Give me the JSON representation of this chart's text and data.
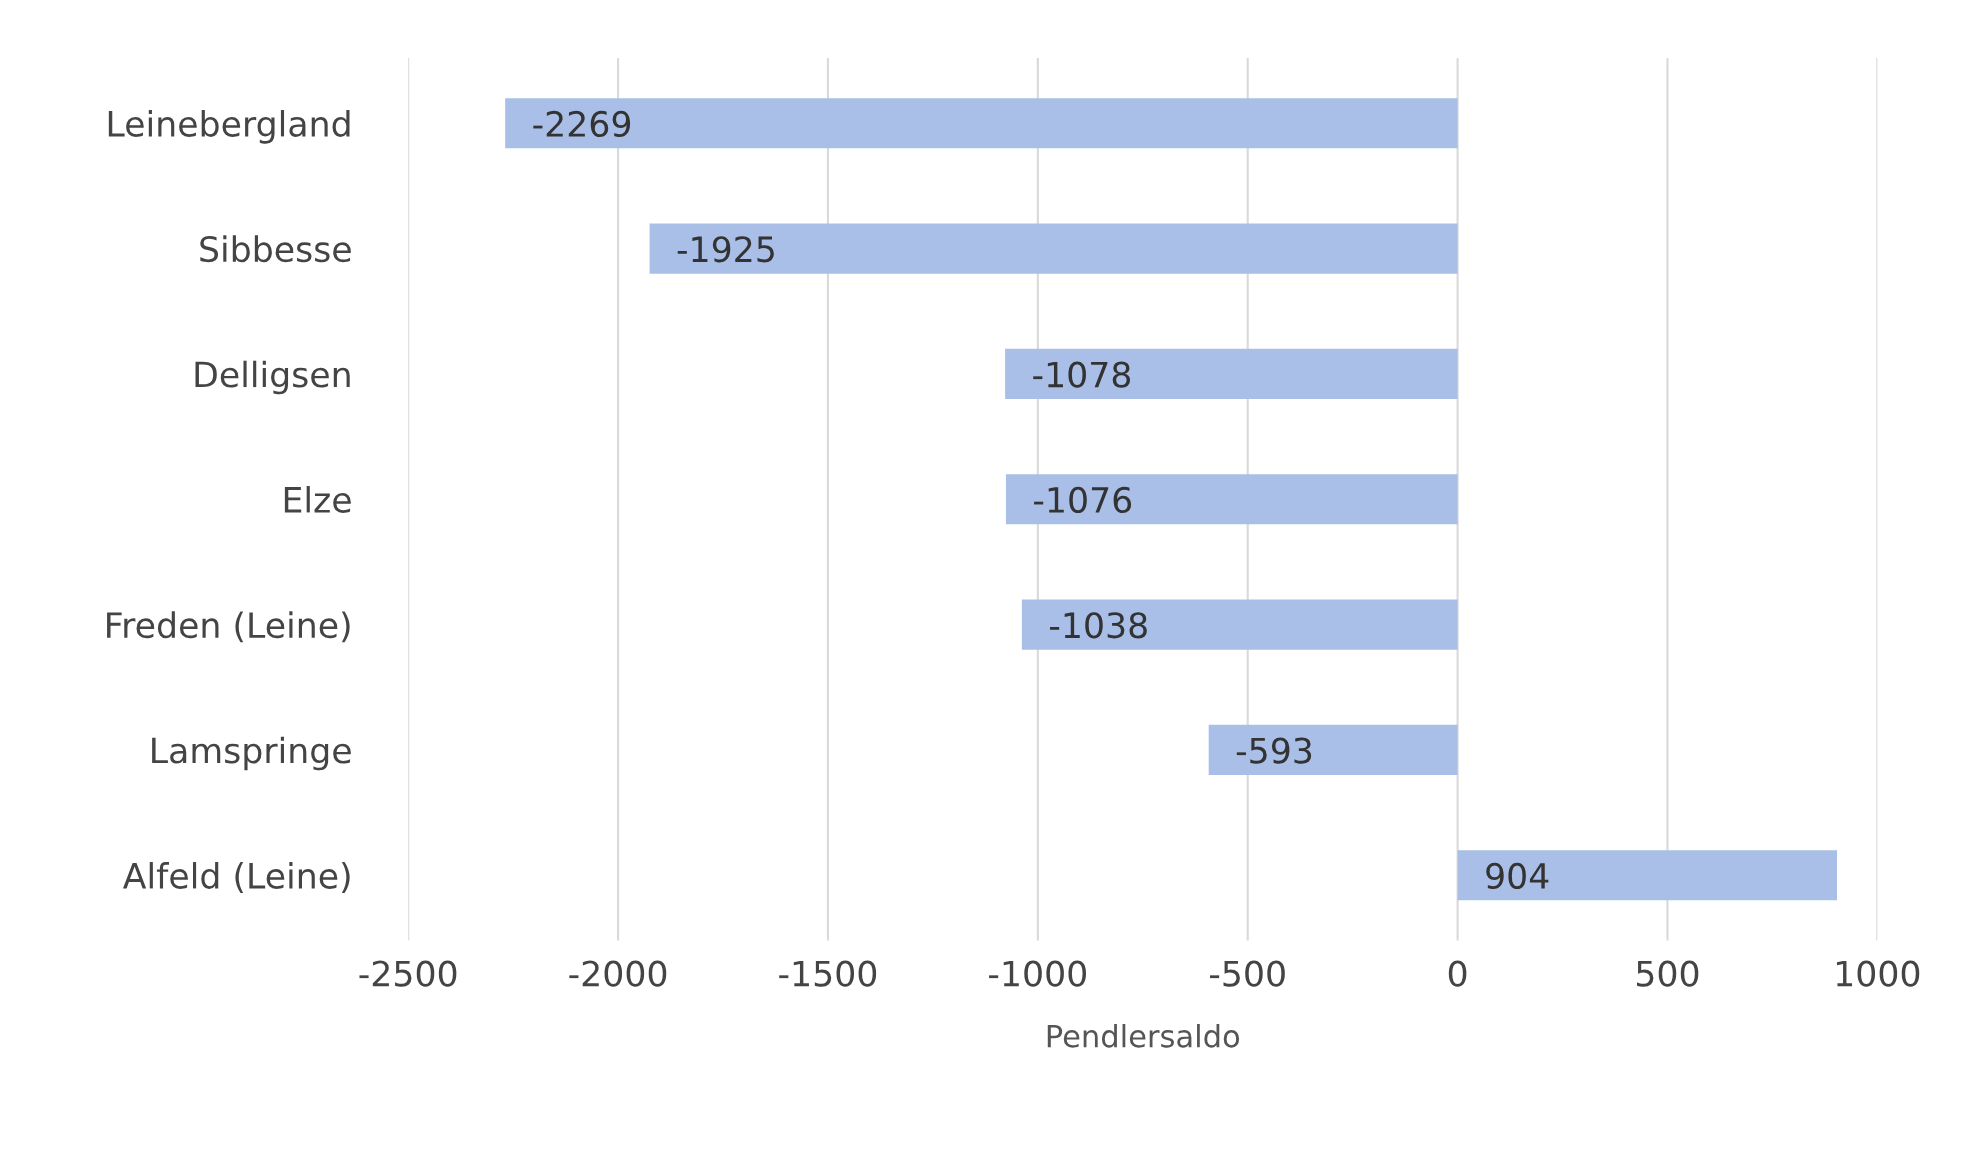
{
  "chart_data": {
    "type": "bar",
    "orientation": "horizontal",
    "xlabel": "Pendlersaldo",
    "categories": [
      "Leinebergland",
      "Sibbesse",
      "Delligsen",
      "Elze",
      "Freden (Leine)",
      "Lamspringe",
      "Alfeld (Leine)"
    ],
    "values": [
      -2269,
      -1925,
      -1078,
      -1076,
      -1038,
      -593,
      904
    ],
    "color": "#a9bfe8",
    "xlim": [
      -2500,
      1000
    ],
    "xticks": [
      -2500,
      -2000,
      -1500,
      -1000,
      -500,
      0,
      500,
      1000
    ],
    "grid": "x",
    "data_labels": true
  }
}
